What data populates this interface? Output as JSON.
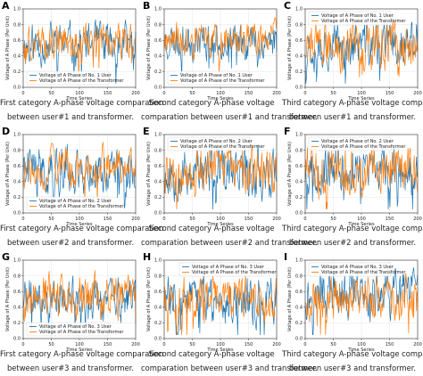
{
  "colors": {
    "user": "#1f77b4",
    "transformer": "#ff7f0e",
    "grid": "#e4e4e4"
  },
  "chart_data": [
    {
      "type": "line",
      "letter": "A",
      "caption": [
        "First category A-phase voltage comparation",
        "between user#1 and transformer."
      ],
      "xlabel": "Time Series",
      "ylabel": "Voltage of A Phase (Per Unit)",
      "xlim": [
        0,
        200
      ],
      "ylim": [
        0,
        1
      ],
      "xticks": [
        0,
        50,
        100,
        150,
        200
      ],
      "yticks": [
        0.0,
        0.2,
        0.4,
        0.6,
        0.8,
        1.0
      ],
      "legend_position": "bottom-left",
      "seed": 11,
      "series": [
        {
          "name": "Voltage of A Phase of No. 1 User",
          "base": 0.55,
          "amp": 0.2
        },
        {
          "name": "Voltage of A Phase of the Transformer",
          "base": 0.58,
          "amp": 0.18
        }
      ]
    },
    {
      "type": "line",
      "letter": "B",
      "caption": [
        "Second category A-phase voltage",
        "comparation between user#1 and transformer."
      ],
      "xlabel": "Time Series",
      "ylabel": "Voltage of A Phase (Per Unit)",
      "xlim": [
        0,
        200
      ],
      "ylim": [
        0,
        1
      ],
      "xticks": [
        0,
        50,
        100,
        150,
        200
      ],
      "yticks": [
        0.0,
        0.2,
        0.4,
        0.6,
        0.8,
        1.0
      ],
      "legend_position": "bottom-left",
      "seed": 23,
      "series": [
        {
          "name": "Voltage of A Phase of No. 1 User",
          "base": 0.6,
          "amp": 0.18
        },
        {
          "name": "Voltage of A Phase of the Transformer",
          "base": 0.62,
          "amp": 0.16
        }
      ]
    },
    {
      "type": "line",
      "letter": "C",
      "caption": [
        "Third category A-phase voltage comparation",
        "between user#1 and transformer."
      ],
      "xlabel": "Time Series",
      "ylabel": "Voltage of A Phase (Per Unit)",
      "xlim": [
        0,
        200
      ],
      "ylim": [
        0,
        1
      ],
      "xticks": [
        0,
        50,
        100,
        150,
        200
      ],
      "yticks": [
        0.0,
        0.2,
        0.4,
        0.6,
        0.8,
        1.0
      ],
      "legend_position": "top-left",
      "seed": 37,
      "series": [
        {
          "name": "Voltage of A Phase of No. 1 User",
          "base": 0.55,
          "amp": 0.22
        },
        {
          "name": "Voltage of A Phase of the Transformer",
          "base": 0.52,
          "amp": 0.22
        }
      ]
    },
    {
      "type": "line",
      "letter": "D",
      "caption": [
        "First category A-phase voltage comparation",
        "between user#2 and transformer."
      ],
      "xlabel": "Time Series",
      "ylabel": "Voltage of A Phase (Per Unit)",
      "xlim": [
        0,
        200
      ],
      "ylim": [
        0,
        1
      ],
      "xticks": [
        0,
        50,
        100,
        150,
        200
      ],
      "yticks": [
        0.0,
        0.2,
        0.4,
        0.6,
        0.8,
        1.0
      ],
      "legend_position": "bottom-left",
      "seed": 41,
      "series": [
        {
          "name": "Voltage of A Phase of No. 2 User",
          "base": 0.55,
          "amp": 0.22
        },
        {
          "name": "Voltage of A Phase of the Transformer",
          "base": 0.6,
          "amp": 0.18
        }
      ]
    },
    {
      "type": "line",
      "letter": "E",
      "caption": [
        "Second category A-phase voltage",
        "comparation between user#2 and transformer."
      ],
      "xlabel": "Time Series",
      "ylabel": "Voltage of A Phase (Per Unit)",
      "xlim": [
        0,
        200
      ],
      "ylim": [
        0,
        1
      ],
      "xticks": [
        0,
        50,
        100,
        150,
        200
      ],
      "yticks": [
        0.0,
        0.2,
        0.4,
        0.6,
        0.8,
        1.0
      ],
      "legend_position": "top-left",
      "seed": 53,
      "series": [
        {
          "name": "Voltage of A Phase of No. 2 User",
          "base": 0.52,
          "amp": 0.24
        },
        {
          "name": "Voltage of A Phase of the Transformer",
          "base": 0.55,
          "amp": 0.22
        }
      ]
    },
    {
      "type": "line",
      "letter": "F",
      "caption": [
        "Third category A-phase voltage comparation",
        "between user#2 and transformer."
      ],
      "xlabel": "Time Series",
      "ylabel": "Voltage of A Phase (Per Unit)",
      "xlim": [
        0,
        200
      ],
      "ylim": [
        0,
        1
      ],
      "xticks": [
        0,
        50,
        100,
        150,
        200
      ],
      "yticks": [
        0.0,
        0.2,
        0.4,
        0.6,
        0.8,
        1.0
      ],
      "legend_position": "top-left",
      "seed": 67,
      "series": [
        {
          "name": "Voltage of A Phase of No. 2 User",
          "base": 0.55,
          "amp": 0.22
        },
        {
          "name": "Voltage of A Phase of the Transformer",
          "base": 0.55,
          "amp": 0.22
        }
      ]
    },
    {
      "type": "line",
      "letter": "G",
      "caption": [
        "First category A-phase voltage comparation",
        "between user#3 and transformer."
      ],
      "xlabel": "Time Series",
      "ylabel": "Voltage of A Phase (Per Unit)",
      "xlim": [
        0,
        200
      ],
      "ylim": [
        0,
        1
      ],
      "xticks": [
        0,
        50,
        100,
        150,
        200
      ],
      "yticks": [
        0.0,
        0.2,
        0.4,
        0.6,
        0.8,
        1.0
      ],
      "legend_position": "bottom-left",
      "seed": 71,
      "series": [
        {
          "name": "Voltage of A Phase of No. 3 User",
          "base": 0.5,
          "amp": 0.2
        },
        {
          "name": "Voltage of A Phase of the Transformer",
          "base": 0.56,
          "amp": 0.2
        }
      ]
    },
    {
      "type": "line",
      "letter": "H",
      "caption": [
        "Second category A-phase voltage",
        "comparation between user#3 and transformer."
      ],
      "xlabel": "Time Series",
      "ylabel": "Voltage of A Phase (Per Unit)",
      "xlim": [
        0,
        200
      ],
      "ylim": [
        0,
        1
      ],
      "xticks": [
        0,
        50,
        100,
        150,
        200
      ],
      "yticks": [
        0.0,
        0.2,
        0.4,
        0.6,
        0.8,
        1.0
      ],
      "legend_position": "top-center",
      "seed": 83,
      "series": [
        {
          "name": "Voltage of A Phase of No. 3 User",
          "base": 0.5,
          "amp": 0.24
        },
        {
          "name": "Voltage of A Phase of the Transformer",
          "base": 0.55,
          "amp": 0.22
        }
      ]
    },
    {
      "type": "line",
      "letter": "I",
      "caption": [
        "Third category A-phase voltage comparation",
        "between user#3 and transformer."
      ],
      "xlabel": "Time Series",
      "ylabel": "Voltage of A Phase (Per Unit)",
      "xlim": [
        0,
        200
      ],
      "ylim": [
        0,
        1
      ],
      "xticks": [
        0,
        50,
        100,
        150,
        200
      ],
      "yticks": [
        0.0,
        0.2,
        0.4,
        0.6,
        0.8,
        1.0
      ],
      "legend_position": "top-left",
      "seed": 97,
      "series": [
        {
          "name": "Voltage of A Phase of No. 3 User",
          "base": 0.55,
          "amp": 0.22
        },
        {
          "name": "Voltage of A Phase of the Transformer",
          "base": 0.55,
          "amp": 0.22
        }
      ]
    }
  ]
}
